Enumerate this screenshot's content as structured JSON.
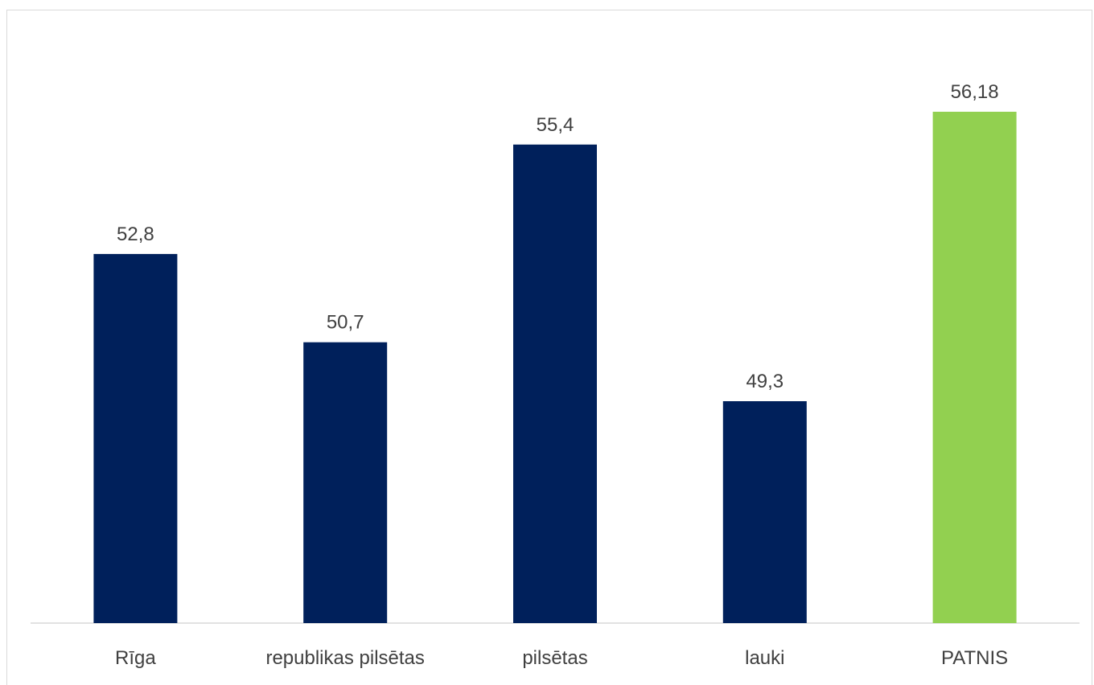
{
  "chart_data": {
    "type": "bar",
    "title": "",
    "xlabel": "",
    "ylabel": "",
    "categories": [
      "Rīga",
      "republikas pilsētas",
      "pilsētas",
      "lauki",
      "PATNIS"
    ],
    "values": [
      52.8,
      50.7,
      55.4,
      49.3,
      56.18
    ],
    "data_labels": [
      "52,8",
      "50,7",
      "55,4",
      "49,3",
      "56,18"
    ],
    "ylim": [
      40,
      57.5
    ],
    "grid": false,
    "legend": "none",
    "colors": {
      "default": "#00205b",
      "highlight": "#92d050",
      "axis": "#d9d9d9",
      "text": "#404040"
    },
    "bar_colors": [
      "#00205b",
      "#00205b",
      "#00205b",
      "#00205b",
      "#92d050"
    ]
  }
}
